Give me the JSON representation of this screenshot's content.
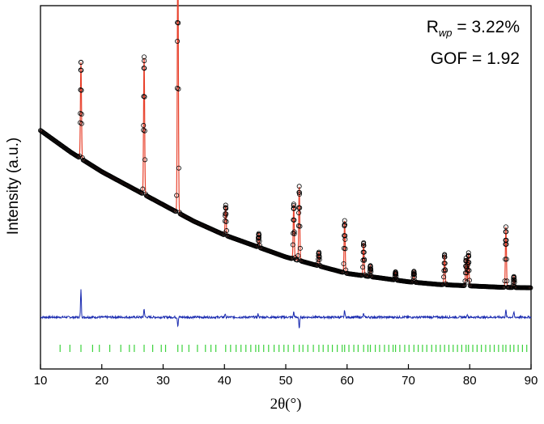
{
  "chart_data": {
    "type": "line",
    "xlabel": "2θ(°)",
    "ylabel": "Intensity (a.u.)",
    "xlim": [
      10,
      90
    ],
    "xticks": [
      10,
      20,
      30,
      40,
      50,
      60,
      70,
      80,
      90
    ],
    "annotations": {
      "rwp_prefix": "R",
      "rwp_sub": "wp",
      "rwp_value": " = 3.22%",
      "gof": "GOF = 1.92"
    },
    "background": {
      "x": [
        10,
        15,
        20,
        25,
        30,
        35,
        40,
        45,
        50,
        55,
        60,
        65,
        70,
        75,
        80,
        85,
        90
      ],
      "y": [
        0.62,
        0.54,
        0.47,
        0.41,
        0.35,
        0.29,
        0.24,
        0.2,
        0.16,
        0.13,
        0.1,
        0.085,
        0.07,
        0.06,
        0.055,
        0.05,
        0.048
      ]
    },
    "peaks": [
      {
        "x": 16.6,
        "h": 0.35
      },
      {
        "x": 26.9,
        "h": 0.5
      },
      {
        "x": 32.4,
        "h": 0.97
      },
      {
        "x": 40.2,
        "h": 0.11
      },
      {
        "x": 45.6,
        "h": 0.05
      },
      {
        "x": 51.3,
        "h": 0.2
      },
      {
        "x": 52.2,
        "h": 0.27
      },
      {
        "x": 55.4,
        "h": 0.05
      },
      {
        "x": 59.6,
        "h": 0.19
      },
      {
        "x": 62.7,
        "h": 0.12
      },
      {
        "x": 63.8,
        "h": 0.04
      },
      {
        "x": 67.9,
        "h": 0.03
      },
      {
        "x": 70.9,
        "h": 0.04
      },
      {
        "x": 75.9,
        "h": 0.11
      },
      {
        "x": 79.4,
        "h": 0.1
      },
      {
        "x": 79.8,
        "h": 0.12
      },
      {
        "x": 85.9,
        "h": 0.22
      },
      {
        "x": 87.2,
        "h": 0.04
      }
    ],
    "difference_spikes": [
      {
        "x": 16.6,
        "v": 0.16
      },
      {
        "x": 26.9,
        "v": 0.05
      },
      {
        "x": 32.4,
        "v": -0.05
      },
      {
        "x": 40.1,
        "v": 0.02
      },
      {
        "x": 45.5,
        "v": 0.02
      },
      {
        "x": 51.3,
        "v": 0.03
      },
      {
        "x": 52.2,
        "v": -0.07
      },
      {
        "x": 59.6,
        "v": 0.04
      },
      {
        "x": 62.7,
        "v": 0.02
      },
      {
        "x": 79.6,
        "v": 0.02
      },
      {
        "x": 85.9,
        "v": 0.04
      },
      {
        "x": 87.2,
        "v": 0.03
      }
    ],
    "bragg_positions": [
      13.2,
      14.8,
      16.6,
      18.5,
      19.6,
      21.3,
      23.1,
      24.5,
      25.3,
      26.9,
      28.3,
      29.7,
      30.4,
      32.4,
      33.1,
      34.2,
      35.6,
      36.9,
      37.8,
      38.6,
      40.2,
      41.0,
      41.9,
      42.7,
      43.5,
      44.3,
      45.1,
      45.6,
      46.4,
      47.2,
      48.1,
      48.9,
      49.7,
      50.4,
      51.3,
      52.2,
      52.8,
      53.6,
      54.5,
      55.4,
      56.1,
      56.9,
      57.6,
      58.4,
      59.2,
      59.6,
      60.3,
      61.1,
      61.8,
      62.7,
      63.4,
      63.8,
      64.6,
      65.3,
      66.1,
      66.8,
      67.5,
      67.9,
      68.6,
      69.4,
      70.1,
      70.9,
      71.6,
      72.3,
      73.0,
      73.8,
      74.5,
      75.2,
      75.9,
      76.6,
      77.3,
      78.0,
      78.7,
      79.4,
      79.8,
      80.5,
      81.2,
      81.9,
      82.6,
      83.3,
      84.0,
      84.7,
      85.4,
      85.9,
      86.6,
      87.2,
      87.9,
      88.6,
      89.3
    ],
    "colors": {
      "observed": "#000000",
      "calculated": "#e8412c",
      "difference": "#1a2bb0",
      "bragg": "#3cd23c"
    }
  }
}
